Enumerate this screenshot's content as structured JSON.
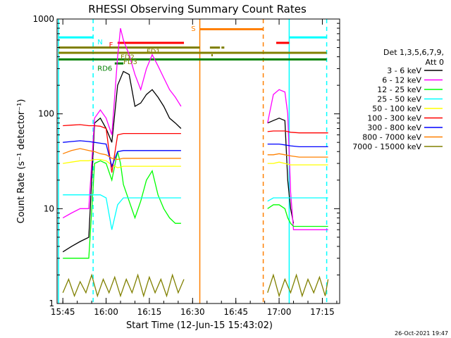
{
  "chart_data": {
    "type": "line",
    "title": "RHESSI Observing Summary Count Rates",
    "xlabel": "Start Time (12-Jun-15 15:43:02)",
    "ylabel": "Count Rate (s⁻¹ detector⁻¹)",
    "yscale": "log",
    "ylim": [
      1,
      1000
    ],
    "xlim_minutes": [
      0,
      98
    ],
    "xticks": [
      {
        "label": "15:45",
        "minute": 2
      },
      {
        "label": "16:00",
        "minute": 17
      },
      {
        "label": "16:15",
        "minute": 32
      },
      {
        "label": "16:30",
        "minute": 47
      },
      {
        "label": "16:45",
        "minute": 62
      },
      {
        "label": "17:00",
        "minute": 77
      },
      {
        "label": "17:15",
        "minute": 92
      }
    ],
    "yticks": [
      {
        "label": "1",
        "value": 1
      },
      {
        "label": "10",
        "value": 10
      },
      {
        "label": "100",
        "value": 100
      },
      {
        "label": "1000",
        "value": 1000
      }
    ],
    "legend": {
      "header1": "Det 1,3,5,6,7,9,",
      "header2": "Att 0",
      "position": "right"
    },
    "series": [
      {
        "name": "3 - 6 keV",
        "color": "#000000",
        "points": [
          [
            2,
            3.5
          ],
          [
            5,
            4
          ],
          [
            8,
            4.5
          ],
          [
            11,
            5
          ],
          [
            13,
            80
          ],
          [
            15,
            90
          ],
          [
            17,
            70
          ],
          [
            19,
            50
          ],
          [
            21,
            200
          ],
          [
            23,
            280
          ],
          [
            25,
            260
          ],
          [
            27,
            120
          ],
          [
            29,
            130
          ],
          [
            31,
            160
          ],
          [
            33,
            180
          ],
          [
            35,
            150
          ],
          [
            37,
            120
          ],
          [
            39,
            90
          ],
          [
            41,
            80
          ],
          [
            43,
            70
          ],
          null,
          [
            73,
            80
          ],
          [
            75,
            85
          ],
          [
            77,
            90
          ],
          [
            79,
            85
          ],
          [
            80,
            20
          ],
          [
            81,
            10
          ],
          [
            82,
            7
          ]
        ]
      },
      {
        "name": "6 - 12 keV",
        "color": "#ff00ff",
        "points": [
          [
            2,
            8
          ],
          [
            5,
            9
          ],
          [
            8,
            10
          ],
          [
            11,
            10
          ],
          [
            13,
            90
          ],
          [
            15,
            110
          ],
          [
            17,
            90
          ],
          [
            19,
            60
          ],
          [
            21,
            400
          ],
          [
            22,
            800
          ],
          [
            23,
            600
          ],
          [
            25,
            420
          ],
          [
            27,
            260
          ],
          [
            29,
            180
          ],
          [
            31,
            300
          ],
          [
            33,
            420
          ],
          [
            35,
            320
          ],
          [
            37,
            240
          ],
          [
            39,
            180
          ],
          [
            41,
            150
          ],
          [
            43,
            120
          ],
          null,
          [
            73,
            80
          ],
          [
            75,
            160
          ],
          [
            77,
            180
          ],
          [
            79,
            170
          ],
          [
            80,
            100
          ],
          [
            81,
            15
          ],
          [
            82,
            6
          ],
          [
            86,
            6
          ],
          [
            90,
            6
          ],
          [
            94,
            6
          ]
        ]
      },
      {
        "name": "12 - 25 keV",
        "color": "#00ff00",
        "points": [
          [
            2,
            3
          ],
          [
            5,
            3
          ],
          [
            8,
            3
          ],
          [
            11,
            3
          ],
          [
            13,
            30
          ],
          [
            15,
            32
          ],
          [
            17,
            30
          ],
          [
            19,
            20
          ],
          [
            21,
            40
          ],
          [
            22,
            30
          ],
          [
            23,
            18
          ],
          [
            25,
            12
          ],
          [
            27,
            8
          ],
          [
            29,
            12
          ],
          [
            31,
            20
          ],
          [
            33,
            25
          ],
          [
            35,
            14
          ],
          [
            37,
            10
          ],
          [
            39,
            8
          ],
          [
            41,
            7
          ],
          [
            43,
            7
          ],
          null,
          [
            73,
            10
          ],
          [
            75,
            11
          ],
          [
            77,
            11
          ],
          [
            79,
            10
          ],
          [
            80,
            8
          ],
          [
            81,
            7
          ],
          [
            82,
            6.5
          ],
          [
            86,
            6.5
          ],
          [
            90,
            6.5
          ],
          [
            94,
            6.5
          ]
        ]
      },
      {
        "name": "25 - 50 keV",
        "color": "#00ffff",
        "points": [
          [
            2,
            14
          ],
          [
            5,
            14
          ],
          [
            8,
            14
          ],
          [
            11,
            14
          ],
          [
            13,
            14
          ],
          [
            15,
            14
          ],
          [
            17,
            13
          ],
          [
            19,
            6
          ],
          [
            21,
            11
          ],
          [
            23,
            13
          ],
          [
            25,
            13
          ],
          [
            27,
            13
          ],
          [
            29,
            13
          ],
          [
            31,
            13
          ],
          [
            33,
            13
          ],
          [
            35,
            13
          ],
          [
            37,
            13
          ],
          [
            39,
            13
          ],
          [
            41,
            13
          ],
          [
            43,
            13
          ],
          null,
          [
            73,
            12
          ],
          [
            75,
            13
          ],
          [
            77,
            13
          ],
          [
            79,
            13
          ],
          [
            81,
            13
          ],
          [
            83,
            13
          ],
          [
            86,
            13
          ],
          [
            90,
            13
          ],
          [
            94,
            13
          ]
        ]
      },
      {
        "name": "50 - 100 keV",
        "color": "#ffff00",
        "points": [
          [
            2,
            30
          ],
          [
            5,
            31
          ],
          [
            8,
            32
          ],
          [
            11,
            32
          ],
          [
            13,
            33
          ],
          [
            15,
            33
          ],
          [
            17,
            32
          ],
          [
            19,
            29
          ],
          [
            21,
            27
          ],
          [
            23,
            28
          ],
          [
            25,
            28
          ],
          [
            27,
            28
          ],
          [
            29,
            28
          ],
          [
            31,
            28
          ],
          [
            33,
            28
          ],
          [
            35,
            28
          ],
          [
            37,
            28
          ],
          [
            39,
            28
          ],
          [
            41,
            28
          ],
          [
            43,
            28
          ],
          null,
          [
            73,
            30
          ],
          [
            75,
            30
          ],
          [
            77,
            31
          ],
          [
            79,
            30
          ],
          [
            81,
            29
          ],
          [
            84,
            29
          ],
          [
            88,
            29
          ],
          [
            92,
            29
          ],
          [
            94,
            29
          ]
        ]
      },
      {
        "name": "100 - 300 keV",
        "color": "#ff0000",
        "points": [
          [
            2,
            75
          ],
          [
            5,
            76
          ],
          [
            8,
            77
          ],
          [
            11,
            75
          ],
          [
            13,
            75
          ],
          [
            15,
            74
          ],
          [
            17,
            70
          ],
          [
            19,
            24
          ],
          [
            21,
            60
          ],
          [
            23,
            62
          ],
          [
            25,
            62
          ],
          [
            27,
            62
          ],
          [
            29,
            62
          ],
          [
            31,
            62
          ],
          [
            33,
            62
          ],
          [
            35,
            62
          ],
          [
            37,
            62
          ],
          [
            39,
            62
          ],
          [
            41,
            62
          ],
          [
            43,
            62
          ],
          null,
          [
            73,
            65
          ],
          [
            75,
            66
          ],
          [
            77,
            66
          ],
          [
            79,
            66
          ],
          [
            81,
            64
          ],
          [
            84,
            63
          ],
          [
            88,
            63
          ],
          [
            92,
            63
          ],
          [
            94,
            63
          ]
        ]
      },
      {
        "name": "300 - 800 keV",
        "color": "#0000ff",
        "points": [
          [
            2,
            50
          ],
          [
            5,
            51
          ],
          [
            8,
            52
          ],
          [
            11,
            51
          ],
          [
            13,
            50
          ],
          [
            15,
            49
          ],
          [
            17,
            48
          ],
          [
            19,
            28
          ],
          [
            21,
            40
          ],
          [
            23,
            41
          ],
          [
            25,
            41
          ],
          [
            27,
            41
          ],
          [
            29,
            41
          ],
          [
            31,
            41
          ],
          [
            33,
            41
          ],
          [
            35,
            41
          ],
          [
            37,
            41
          ],
          [
            39,
            41
          ],
          [
            41,
            41
          ],
          [
            43,
            41
          ],
          null,
          [
            73,
            48
          ],
          [
            75,
            48
          ],
          [
            77,
            48
          ],
          [
            79,
            47
          ],
          [
            81,
            46
          ],
          [
            84,
            45
          ],
          [
            88,
            45
          ],
          [
            92,
            45
          ],
          [
            94,
            45
          ]
        ]
      },
      {
        "name": "800 - 7000 keV",
        "color": "#ff8000",
        "points": [
          [
            2,
            38
          ],
          [
            5,
            41
          ],
          [
            8,
            43
          ],
          [
            11,
            41
          ],
          [
            13,
            40
          ],
          [
            15,
            38
          ],
          [
            17,
            37
          ],
          [
            19,
            34
          ],
          [
            21,
            33
          ],
          [
            23,
            34
          ],
          [
            25,
            34
          ],
          [
            27,
            34
          ],
          [
            29,
            34
          ],
          [
            31,
            34
          ],
          [
            33,
            34
          ],
          [
            35,
            34
          ],
          [
            37,
            34
          ],
          [
            39,
            34
          ],
          [
            41,
            34
          ],
          [
            43,
            34
          ],
          null,
          [
            73,
            37
          ],
          [
            75,
            37
          ],
          [
            77,
            38
          ],
          [
            79,
            37
          ],
          [
            81,
            36
          ],
          [
            84,
            35
          ],
          [
            88,
            35
          ],
          [
            92,
            35
          ],
          [
            94,
            35
          ]
        ]
      },
      {
        "name": "7000 - 15000 keV",
        "color": "#808000",
        "points": [
          [
            2,
            1.3
          ],
          [
            4,
            1.8
          ],
          [
            6,
            1.2
          ],
          [
            8,
            1.7
          ],
          [
            10,
            1.3
          ],
          [
            12,
            2.0
          ],
          [
            14,
            1.2
          ],
          [
            16,
            1.8
          ],
          [
            18,
            1.3
          ],
          [
            20,
            1.9
          ],
          [
            22,
            1.2
          ],
          [
            24,
            1.8
          ],
          [
            26,
            1.3
          ],
          [
            28,
            2.0
          ],
          [
            30,
            1.2
          ],
          [
            32,
            1.9
          ],
          [
            34,
            1.3
          ],
          [
            36,
            1.8
          ],
          [
            38,
            1.2
          ],
          [
            40,
            2.0
          ],
          [
            42,
            1.3
          ],
          [
            44,
            1.8
          ],
          null,
          [
            73,
            1.3
          ],
          [
            75,
            2.0
          ],
          [
            77,
            1.2
          ],
          [
            79,
            1.8
          ],
          [
            81,
            1.3
          ],
          [
            83,
            2.0
          ],
          [
            85,
            1.2
          ],
          [
            87,
            1.8
          ],
          [
            89,
            1.3
          ],
          [
            91,
            1.9
          ],
          [
            93,
            1.2
          ],
          [
            94,
            1.8
          ]
        ]
      }
    ],
    "vlines": [
      {
        "minute": 0.5,
        "color": "#00ffff",
        "style": "solid"
      },
      {
        "minute": 12.5,
        "color": "#00ffff",
        "style": "dashed"
      },
      {
        "minute": 49.5,
        "color": "#ff8000",
        "style": "solid"
      },
      {
        "minute": 71.5,
        "color": "#ff8000",
        "style": "dashed"
      },
      {
        "minute": 80.5,
        "color": "#00ffff",
        "style": "solid"
      },
      {
        "minute": 93.5,
        "color": "#00ffff",
        "style": "dashed"
      }
    ],
    "flag_bars": [
      {
        "label": "N",
        "color": "#00ffff",
        "segments": [
          [
            0.5,
            12.5
          ],
          [
            80.5,
            93.5
          ]
        ],
        "level": 640
      },
      {
        "label": "S",
        "color": "#ff8000",
        "segments": [
          [
            49.5,
            71.5
          ]
        ],
        "level": 780
      },
      {
        "label": "F",
        "color": "#ff0000",
        "segments": [
          [
            21,
            44
          ],
          [
            76,
            80.5
          ]
        ],
        "level": 560
      },
      {
        "label": "FD1",
        "color": "#808000",
        "segments": [
          [
            0.5,
            49.5
          ],
          [
            53,
            56.5
          ],
          [
            57,
            58
          ]
        ],
        "level": 500
      },
      {
        "label": "FD2",
        "color": "#808000",
        "segments": [
          [
            0.5,
            93.5
          ]
        ],
        "level": 440
      },
      {
        "label": "FD3",
        "color": "#808000",
        "segments": [
          [
            53.5,
            54
          ]
        ],
        "level": 415
      },
      {
        "label": "RD6",
        "color": "#008000",
        "segments": [
          [
            0.5,
            93.5
          ]
        ],
        "level": 375
      },
      {
        "label": "RD6b",
        "color": "#008000",
        "segments": [
          [
            20,
            23
          ]
        ],
        "level": 340
      }
    ],
    "grid": false
  },
  "footer": {
    "timestamp": "26-Oct-2021 19:47"
  },
  "flag_labels": {
    "N": "N",
    "S": "S",
    "F": "F",
    "FD1": "FD1",
    "FD2": "FD2",
    "FD3": "FD3",
    "RD6": "RD6"
  }
}
